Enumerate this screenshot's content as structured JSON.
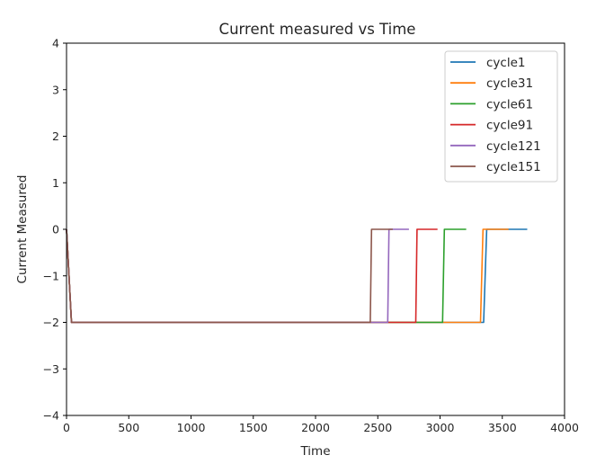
{
  "chart_data": {
    "type": "line",
    "title": "Current measured vs Time",
    "xlabel": "Time",
    "ylabel": "Current Measured",
    "xlim": [
      0,
      4000
    ],
    "ylim": [
      -4,
      4
    ],
    "xticks": [
      0,
      500,
      1000,
      1500,
      2000,
      2500,
      3000,
      3500,
      4000
    ],
    "xtick_labels": [
      "0",
      "500",
      "1000",
      "1500",
      "2000",
      "2500",
      "3000",
      "3500",
      "4000"
    ],
    "yticks": [
      -4,
      -3,
      -2,
      -1,
      0,
      1,
      2,
      3,
      4
    ],
    "ytick_labels": [
      "−4",
      "−3",
      "−2",
      "−1",
      "0",
      "1",
      "2",
      "3",
      "4"
    ],
    "grid": false,
    "legend_position": "top-right",
    "series": [
      {
        "name": "cycle1",
        "color": "#1f77b4",
        "x": [
          0,
          40,
          3350,
          3375,
          3700
        ],
        "y": [
          0,
          -2,
          -2,
          0,
          0
        ]
      },
      {
        "name": "cycle31",
        "color": "#ff7f0e",
        "x": [
          0,
          40,
          3325,
          3345,
          3550
        ],
        "y": [
          0,
          -2,
          -2,
          0,
          0
        ]
      },
      {
        "name": "cycle61",
        "color": "#2ca02c",
        "x": [
          0,
          40,
          3020,
          3035,
          3210
        ],
        "y": [
          0,
          -2,
          -2,
          0,
          0
        ]
      },
      {
        "name": "cycle91",
        "color": "#d62728",
        "x": [
          0,
          40,
          2805,
          2815,
          2980
        ],
        "y": [
          0,
          -2,
          -2,
          0,
          0
        ]
      },
      {
        "name": "cycle121",
        "color": "#9467bd",
        "x": [
          0,
          40,
          2580,
          2590,
          2750
        ],
        "y": [
          0,
          -2,
          -2,
          0,
          0
        ]
      },
      {
        "name": "cycle151",
        "color": "#8c564b",
        "x": [
          0,
          40,
          2440,
          2450,
          2620
        ],
        "y": [
          0,
          -2,
          -2,
          0,
          0
        ]
      }
    ]
  }
}
